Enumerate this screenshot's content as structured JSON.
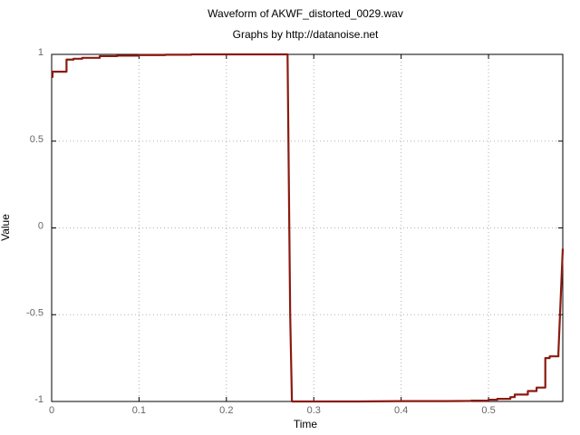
{
  "chart_data": {
    "type": "line",
    "title": "Waveform of AKWF_distorted_0029.wav",
    "subtitle": "Graphs by http://datanoise.net",
    "xlabel": "Time",
    "ylabel": "Value",
    "xlim": [
      0,
      0.585
    ],
    "ylim": [
      -1,
      1
    ],
    "xticks": [
      "0",
      "0.1",
      "0.2",
      "0.3",
      "0.4",
      "0.5"
    ],
    "yticks": [
      "1",
      "0.5",
      "0",
      "-0.5",
      "-1"
    ],
    "grid": true,
    "line_color": "#8b1a10",
    "series": [
      {
        "x": [
          0,
          0.001,
          0.001,
          0.017,
          0.017,
          0.025,
          0.025,
          0.035,
          0.035,
          0.055,
          0.055,
          0.075,
          0.075,
          0.1,
          0.1,
          0.13,
          0.13,
          0.16,
          0.16,
          0.27,
          0.273,
          0.275,
          0.3,
          0.35,
          0.4,
          0.45,
          0.48,
          0.48,
          0.5,
          0.5,
          0.51,
          0.51,
          0.525,
          0.525,
          0.53,
          0.53,
          0.545,
          0.545,
          0.555,
          0.555,
          0.565,
          0.565,
          0.57,
          0.57,
          0.58,
          0.58,
          0.585
        ],
        "y": [
          0.87,
          0.87,
          0.9,
          0.9,
          0.97,
          0.97,
          0.975,
          0.975,
          0.98,
          0.98,
          0.99,
          0.99,
          0.993,
          0.993,
          0.996,
          0.996,
          0.998,
          0.998,
          1.0,
          1.0,
          -0.5,
          -1.0,
          -1.0,
          -1.0,
          -0.998,
          -0.998,
          -0.997,
          -0.995,
          -0.995,
          -0.99,
          -0.99,
          -0.985,
          -0.985,
          -0.975,
          -0.975,
          -0.96,
          -0.96,
          -0.94,
          -0.94,
          -0.92,
          -0.92,
          -0.75,
          -0.75,
          -0.74,
          -0.74,
          -0.72,
          -0.12
        ]
      }
    ]
  }
}
